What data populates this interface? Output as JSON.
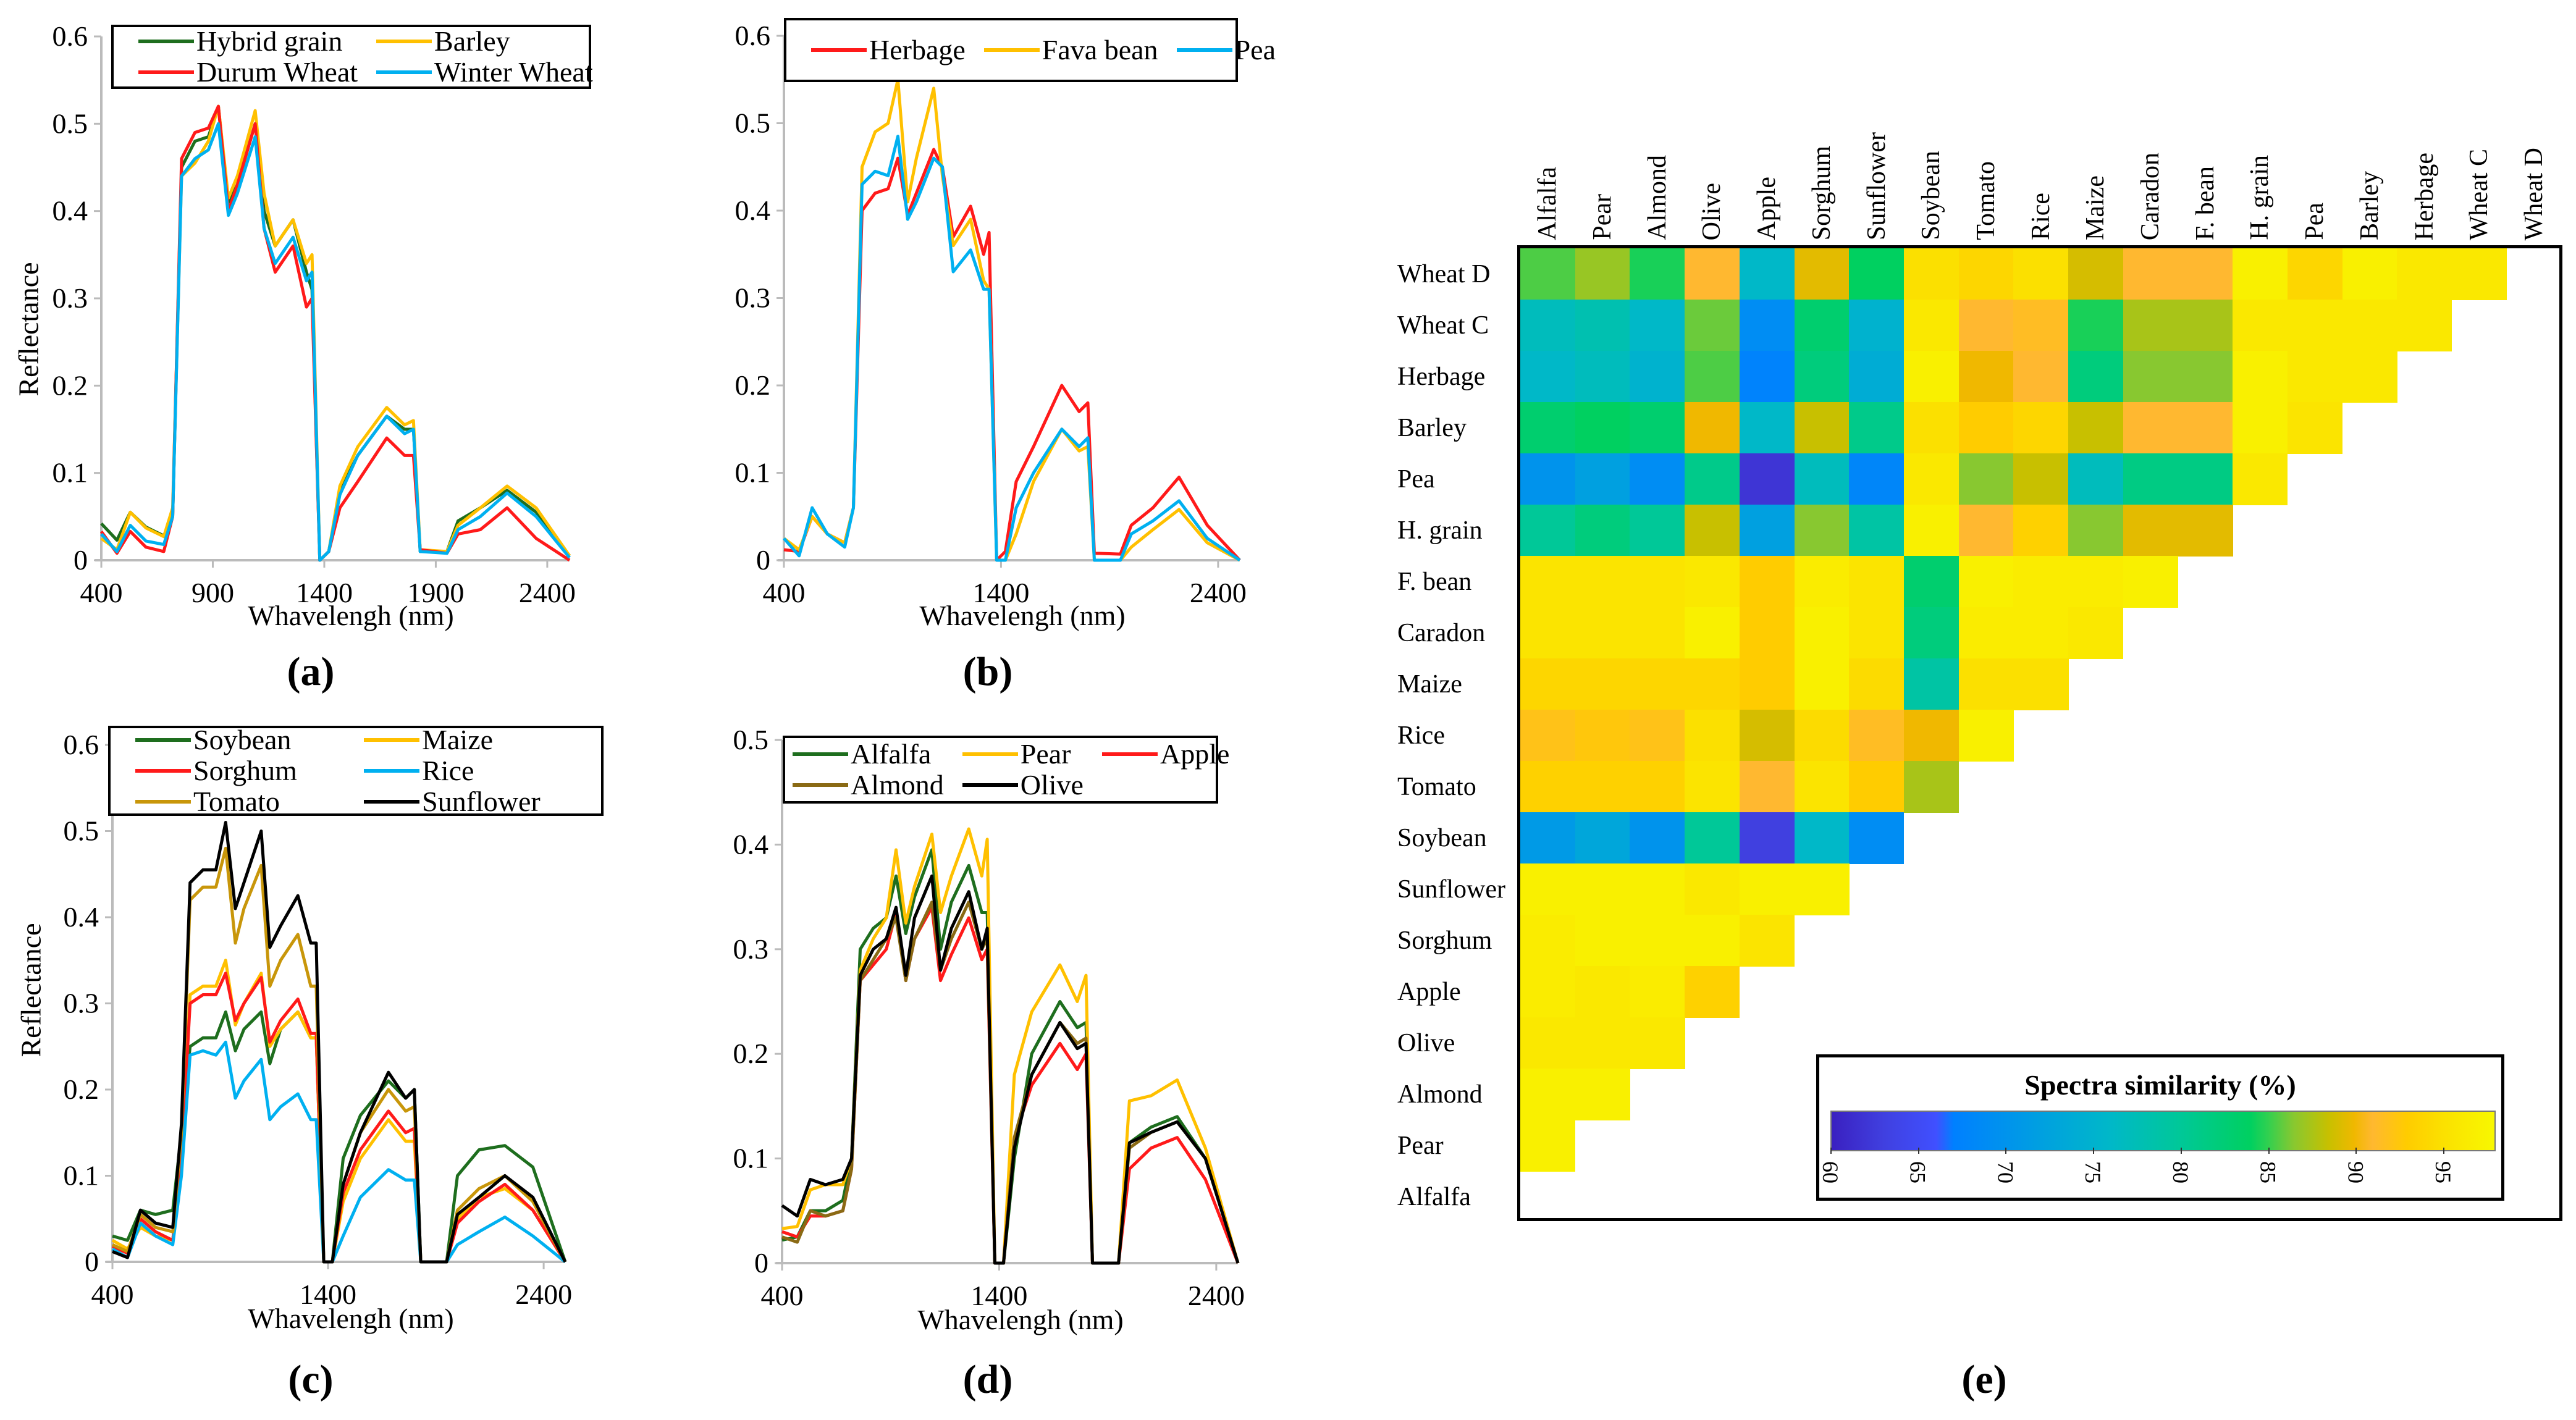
{
  "chart_data": [
    {
      "panel": "(a)",
      "type": "line",
      "xlabel": "Whavelengh  (nm)",
      "ylabel": "Reflectance",
      "xlim": [
        400,
        2500
      ],
      "ylim": [
        0,
        0.6
      ],
      "xticks": [
        400,
        900,
        1400,
        1900,
        2400
      ],
      "yticks": [
        0,
        0.1,
        0.2,
        0.3,
        0.4,
        0.5,
        0.6
      ],
      "legend_columns": 2,
      "x": [
        400,
        470,
        530,
        600,
        680,
        720,
        760,
        820,
        880,
        925,
        970,
        1010,
        1090,
        1130,
        1180,
        1260,
        1320,
        1345,
        1380,
        1420,
        1470,
        1550,
        1680,
        1760,
        1800,
        1830,
        1950,
        2000,
        2100,
        2220,
        2350,
        2500
      ],
      "series": [
        {
          "name": "Hybrid grain",
          "color": "#1e6e1e",
          "values": [
            0.042,
            0.023,
            0.055,
            0.038,
            0.028,
            0.05,
            0.45,
            0.48,
            0.485,
            0.52,
            0.41,
            0.43,
            0.5,
            0.4,
            0.36,
            0.39,
            0.33,
            0.31,
            0,
            0.01,
            0.08,
            0.12,
            0.165,
            0.15,
            0.15,
            0.01,
            0.01,
            0.045,
            0.06,
            0.08,
            0.055,
            0.005
          ]
        },
        {
          "name": "Barley",
          "color": "#ffc000",
          "values": [
            0.025,
            0.012,
            0.055,
            0.037,
            0.027,
            0.06,
            0.44,
            0.455,
            0.48,
            0.52,
            0.415,
            0.44,
            0.515,
            0.42,
            0.36,
            0.39,
            0.34,
            0.35,
            0,
            0.01,
            0.085,
            0.13,
            0.175,
            0.155,
            0.16,
            0.012,
            0.01,
            0.04,
            0.06,
            0.085,
            0.06,
            0.005
          ]
        },
        {
          "name": "Durum Wheat",
          "color": "#ff1a1a",
          "values": [
            0.033,
            0.008,
            0.033,
            0.015,
            0.01,
            0.05,
            0.46,
            0.49,
            0.495,
            0.52,
            0.4,
            0.43,
            0.5,
            0.38,
            0.33,
            0.36,
            0.29,
            0.3,
            0,
            0.01,
            0.06,
            0.09,
            0.14,
            0.12,
            0.12,
            0.012,
            0.008,
            0.03,
            0.035,
            0.06,
            0.025,
            0
          ]
        },
        {
          "name": "Winter Wheat",
          "color": "#00b0f0",
          "values": [
            0.03,
            0.01,
            0.04,
            0.022,
            0.018,
            0.05,
            0.44,
            0.46,
            0.47,
            0.5,
            0.395,
            0.42,
            0.485,
            0.38,
            0.34,
            0.37,
            0.32,
            0.33,
            0,
            0.01,
            0.075,
            0.12,
            0.165,
            0.145,
            0.15,
            0.01,
            0.008,
            0.035,
            0.05,
            0.077,
            0.05,
            0.003
          ]
        }
      ]
    },
    {
      "panel": "(b)",
      "type": "line",
      "xlabel": "Whavelengh  (nm)",
      "ylabel": "",
      "xlim": [
        400,
        2500
      ],
      "ylim": [
        0,
        0.6
      ],
      "xticks": [
        400,
        1400,
        2400
      ],
      "yticks": [
        0,
        0.1,
        0.2,
        0.3,
        0.4,
        0.5,
        0.6
      ],
      "legend_columns": 3,
      "x": [
        400,
        470,
        530,
        600,
        680,
        720,
        760,
        820,
        880,
        925,
        970,
        1010,
        1090,
        1130,
        1180,
        1260,
        1320,
        1345,
        1380,
        1420,
        1470,
        1550,
        1680,
        1760,
        1800,
        1830,
        1950,
        2000,
        2100,
        2220,
        2350,
        2500
      ],
      "series": [
        {
          "name": "Herbage",
          "color": "#ff1a1a",
          "values": [
            0.012,
            0.01,
            0.05,
            0.03,
            0.02,
            0.06,
            0.4,
            0.42,
            0.425,
            0.46,
            0.395,
            0.42,
            0.47,
            0.45,
            0.37,
            0.405,
            0.35,
            0.375,
            0,
            0.01,
            0.09,
            0.13,
            0.2,
            0.17,
            0.18,
            0.008,
            0.007,
            0.04,
            0.06,
            0.095,
            0.04,
            0
          ]
        },
        {
          "name": "Fava bean",
          "color": "#ffc000",
          "values": [
            0.025,
            0.012,
            0.05,
            0.03,
            0.02,
            0.06,
            0.45,
            0.49,
            0.5,
            0.55,
            0.41,
            0.46,
            0.54,
            0.44,
            0.36,
            0.39,
            0.32,
            0.31,
            0,
            0,
            0.03,
            0.09,
            0.15,
            0.125,
            0.13,
            0,
            0,
            0.015,
            0.035,
            0.058,
            0.02,
            0
          ]
        },
        {
          "name": "Pea",
          "color": "#00b0f0",
          "values": [
            0.025,
            0.005,
            0.06,
            0.03,
            0.015,
            0.06,
            0.43,
            0.445,
            0.44,
            0.485,
            0.39,
            0.41,
            0.46,
            0.45,
            0.33,
            0.355,
            0.31,
            0.31,
            0,
            0,
            0.06,
            0.1,
            0.15,
            0.13,
            0.14,
            0,
            0,
            0.03,
            0.045,
            0.068,
            0.025,
            0
          ]
        }
      ]
    },
    {
      "panel": "(c)",
      "type": "line",
      "xlabel": "Whavelengh  (nm)",
      "ylabel": "Reflectance",
      "xlim": [
        400,
        2500
      ],
      "ylim": [
        0,
        0.6
      ],
      "xticks": [
        400,
        1400,
        2400
      ],
      "yticks": [
        0,
        0.1,
        0.2,
        0.3,
        0.4,
        0.5,
        0.6
      ],
      "legend_columns": 2,
      "x": [
        400,
        470,
        530,
        600,
        680,
        720,
        760,
        820,
        880,
        925,
        970,
        1010,
        1090,
        1130,
        1180,
        1260,
        1320,
        1345,
        1380,
        1420,
        1470,
        1550,
        1680,
        1760,
        1800,
        1830,
        1950,
        2000,
        2100,
        2220,
        2350,
        2500
      ],
      "series": [
        {
          "name": "Soybean",
          "color": "#1e6e1e",
          "values": [
            0.03,
            0.025,
            0.06,
            0.055,
            0.06,
            0.15,
            0.25,
            0.26,
            0.26,
            0.29,
            0.245,
            0.27,
            0.29,
            0.23,
            0.27,
            0.29,
            0.26,
            0.26,
            0,
            0,
            0.12,
            0.17,
            0.21,
            0.19,
            0.2,
            0,
            0,
            0.1,
            0.13,
            0.135,
            0.11,
            0
          ]
        },
        {
          "name": "Maize",
          "color": "#ffc000",
          "values": [
            0.025,
            0.015,
            0.04,
            0.03,
            0.025,
            0.12,
            0.31,
            0.32,
            0.32,
            0.35,
            0.275,
            0.3,
            0.335,
            0.25,
            0.27,
            0.29,
            0.26,
            0.26,
            0,
            0,
            0.07,
            0.12,
            0.165,
            0.14,
            0.14,
            0,
            0,
            0.05,
            0.075,
            0.085,
            0.06,
            0
          ]
        },
        {
          "name": "Sorghum",
          "color": "#ff1a1a",
          "values": [
            0.018,
            0.01,
            0.05,
            0.035,
            0.025,
            0.12,
            0.3,
            0.31,
            0.31,
            0.335,
            0.28,
            0.3,
            0.33,
            0.255,
            0.28,
            0.305,
            0.265,
            0.265,
            0,
            0,
            0.08,
            0.13,
            0.175,
            0.15,
            0.155,
            0,
            0,
            0.045,
            0.07,
            0.09,
            0.06,
            0
          ]
        },
        {
          "name": "Rice",
          "color": "#00b0f0",
          "values": [
            0.015,
            0.005,
            0.045,
            0.03,
            0.02,
            0.1,
            0.24,
            0.245,
            0.24,
            0.255,
            0.19,
            0.21,
            0.235,
            0.165,
            0.18,
            0.195,
            0.165,
            0.165,
            0,
            0,
            0.03,
            0.075,
            0.107,
            0.095,
            0.095,
            0,
            0,
            0.02,
            0.035,
            0.052,
            0.03,
            0
          ]
        },
        {
          "name": "Tomato",
          "color": "#c8960a",
          "values": [
            0.02,
            0.012,
            0.055,
            0.04,
            0.035,
            0.15,
            0.42,
            0.435,
            0.435,
            0.48,
            0.37,
            0.41,
            0.46,
            0.32,
            0.35,
            0.38,
            0.32,
            0.32,
            0,
            0,
            0.09,
            0.15,
            0.2,
            0.175,
            0.18,
            0,
            0,
            0.06,
            0.085,
            0.1,
            0.07,
            0
          ]
        },
        {
          "name": "Sunflower",
          "color": "#000000",
          "values": [
            0.012,
            0.005,
            0.06,
            0.045,
            0.04,
            0.16,
            0.44,
            0.455,
            0.455,
            0.51,
            0.41,
            0.44,
            0.5,
            0.365,
            0.39,
            0.425,
            0.37,
            0.37,
            0,
            0,
            0.09,
            0.15,
            0.22,
            0.19,
            0.2,
            0,
            0,
            0.055,
            0.075,
            0.1,
            0.075,
            0
          ]
        }
      ]
    },
    {
      "panel": "(d)",
      "type": "line",
      "xlabel": "Whavelengh  (nm)",
      "ylabel": "",
      "xlim": [
        400,
        2500
      ],
      "ylim": [
        0,
        0.5
      ],
      "xticks": [
        400,
        1400,
        2400
      ],
      "yticks": [
        0,
        0.1,
        0.2,
        0.3,
        0.4,
        0.5
      ],
      "legend_columns": 3,
      "x": [
        400,
        470,
        530,
        600,
        680,
        720,
        760,
        820,
        880,
        925,
        970,
        1010,
        1090,
        1130,
        1180,
        1260,
        1320,
        1345,
        1380,
        1420,
        1470,
        1550,
        1680,
        1760,
        1800,
        1830,
        1950,
        2000,
        2100,
        2220,
        2350,
        2500
      ],
      "series": [
        {
          "name": "Alfalfa",
          "color": "#1e6e1e",
          "values": [
            0.022,
            0.025,
            0.05,
            0.05,
            0.06,
            0.1,
            0.3,
            0.32,
            0.33,
            0.37,
            0.315,
            0.35,
            0.395,
            0.3,
            0.345,
            0.38,
            0.335,
            0.335,
            0,
            0,
            0.1,
            0.2,
            0.25,
            0.225,
            0.23,
            0,
            0,
            0.115,
            0.13,
            0.14,
            0.1,
            0
          ]
        },
        {
          "name": "Pear",
          "color": "#ffc000",
          "values": [
            0.033,
            0.035,
            0.07,
            0.075,
            0.075,
            0.1,
            0.28,
            0.31,
            0.33,
            0.395,
            0.325,
            0.36,
            0.41,
            0.335,
            0.37,
            0.415,
            0.37,
            0.405,
            0,
            0,
            0.18,
            0.24,
            0.285,
            0.25,
            0.275,
            0,
            0,
            0.155,
            0.16,
            0.175,
            0.11,
            0
          ]
        },
        {
          "name": "Apple",
          "color": "#ff1a1a",
          "values": [
            0.03,
            0.025,
            0.045,
            0.045,
            0.05,
            0.09,
            0.27,
            0.285,
            0.3,
            0.335,
            0.27,
            0.31,
            0.34,
            0.27,
            0.295,
            0.33,
            0.29,
            0.3,
            0,
            0,
            0.12,
            0.17,
            0.21,
            0.185,
            0.2,
            0,
            0,
            0.09,
            0.11,
            0.12,
            0.08,
            0
          ]
        },
        {
          "name": "Almond",
          "color": "#8a6a14",
          "values": [
            0.025,
            0.02,
            0.05,
            0.045,
            0.05,
            0.09,
            0.27,
            0.29,
            0.31,
            0.33,
            0.27,
            0.31,
            0.345,
            0.28,
            0.31,
            0.345,
            0.3,
            0.31,
            0,
            0,
            0.12,
            0.18,
            0.23,
            0.21,
            0.215,
            0,
            0,
            0.11,
            0.125,
            0.135,
            0.1,
            0
          ]
        },
        {
          "name": "Olive",
          "color": "#000000",
          "values": [
            0.055,
            0.045,
            0.08,
            0.075,
            0.08,
            0.1,
            0.275,
            0.3,
            0.31,
            0.34,
            0.275,
            0.33,
            0.37,
            0.28,
            0.32,
            0.355,
            0.3,
            0.32,
            0,
            0,
            0.11,
            0.18,
            0.23,
            0.205,
            0.21,
            0,
            0,
            0.115,
            0.125,
            0.135,
            0.1,
            0
          ]
        }
      ]
    },
    {
      "panel": "(e)",
      "type": "heatmap",
      "title": "Spectra similarity (%)",
      "rows": [
        "Wheat D",
        "Wheat C",
        "Herbage",
        "Barley",
        "Pea",
        "H. grain",
        "F. bean",
        "Caradon",
        "Maize",
        "Rice",
        "Tomato",
        "Soybean",
        "Sunflower",
        "Sorghum",
        "Apple",
        "Olive",
        "Almond",
        "Pear",
        "Alfalfa"
      ],
      "columns": [
        "Alfalfa",
        "Pear",
        "Almond",
        "Olive",
        "Apple",
        "Sorghum",
        "Sunflower",
        "Soybean",
        "Tomato",
        "Rice",
        "Maize",
        "Caradon",
        "F. bean",
        "H. grain",
        "Pea",
        "Barley",
        "Herbage",
        "Wheat C",
        "Wheat D"
      ],
      "values": [
        [
          85.5,
          87,
          84.5,
          91,
          76,
          89.5,
          84,
          95,
          94,
          95,
          89,
          91,
          91,
          97,
          94,
          97,
          96,
          96
        ],
        [
          77,
          78,
          76,
          86,
          69,
          83,
          75,
          96,
          91,
          91.5,
          84.5,
          87.5,
          87.5,
          96,
          96,
          96,
          96
        ],
        [
          76,
          77,
          75,
          85.5,
          67.5,
          82,
          74,
          97,
          90,
          91,
          82,
          86.5,
          86.5,
          97,
          96,
          96
        ],
        [
          83,
          84,
          83,
          90,
          76,
          88.5,
          81,
          95,
          93,
          94,
          88.5,
          91,
          91,
          97,
          95.5
        ],
        [
          70,
          72,
          69,
          81,
          62,
          77,
          68,
          96,
          86.5,
          88.5,
          77,
          81.5,
          81.5,
          96
        ],
        [
          80,
          82,
          80,
          88.5,
          72,
          86.5,
          79,
          97,
          91,
          93.5,
          86.5,
          89.5,
          89.5
        ],
        [
          95.5,
          95.5,
          95.5,
          96,
          93,
          96.5,
          95.5,
          83,
          97,
          96.5,
          96.5,
          97
        ],
        [
          95.5,
          95.5,
          95.5,
          97,
          93,
          97,
          95.5,
          82,
          96.5,
          96.5,
          96
        ],
        [
          94,
          94,
          94,
          94,
          93,
          97,
          94.5,
          79,
          95,
          95
        ],
        [
          92,
          92.5,
          92,
          95,
          89,
          94.5,
          91.5,
          90,
          97
        ],
        [
          93.5,
          93.5,
          93.5,
          95.5,
          91,
          95.5,
          93,
          87.5
        ],
        [
          71,
          73,
          70,
          80,
          63,
          76,
          69
        ],
        [
          97,
          97,
          97,
          96,
          97,
          97
        ],
        [
          96.5,
          97,
          97,
          97,
          95.5
        ],
        [
          96.5,
          96,
          96.5,
          93.5
        ],
        [
          96,
          96,
          96
        ],
        [
          97,
          97
        ],
        [
          97
        ],
        []
      ],
      "colorbar": {
        "range": [
          60,
          98
        ],
        "ticks": [
          60,
          65,
          70,
          75,
          80,
          85,
          90,
          95
        ]
      }
    }
  ]
}
